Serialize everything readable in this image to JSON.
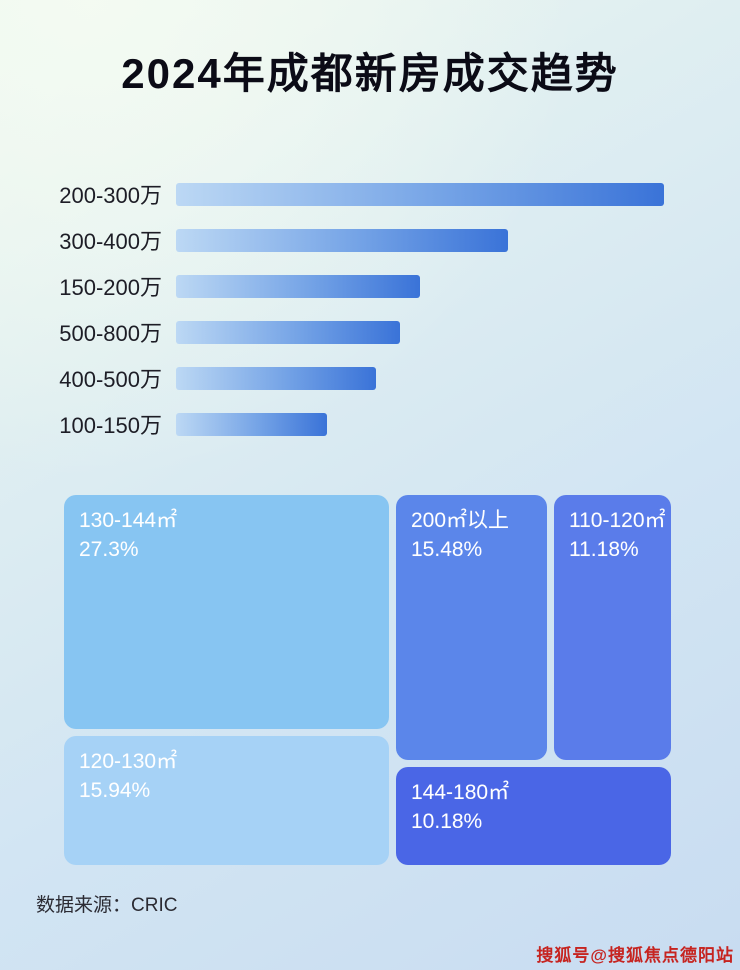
{
  "page": {
    "title": "2024年成都新房成交趋势",
    "source_label": "数据来源：CRIC",
    "watermark": "搜狐号@搜狐焦点德阳站"
  },
  "colors": {
    "bar_gradient_start": "#bcd8f4",
    "bar_gradient_end": "#3a73d8",
    "block_130_144": "#87c5f2",
    "block_200_plus": "#5b86ea",
    "block_110_120": "#5a7cea",
    "block_120_130": "#a6d2f6",
    "block_144_180": "#4a66e6",
    "watermark_red": "#c62420",
    "title_color": "#0b0b16"
  },
  "chart_data": [
    {
      "type": "bar",
      "title": "2024年成都新房成交趋势",
      "orientation": "horizontal",
      "categories": [
        "200-300万",
        "300-400万",
        "150-200万",
        "500-800万",
        "400-500万",
        "100-150万"
      ],
      "values": [
        100,
        68,
        50,
        46,
        41,
        31
      ],
      "xlim": [
        0,
        100
      ],
      "xlabel": "",
      "ylabel": "",
      "grid": false,
      "legend": "none"
    },
    {
      "type": "treemap",
      "items": [
        {
          "label": "130-144㎡",
          "value": 27.3,
          "display": "27.3%"
        },
        {
          "label": "200㎡以上",
          "value": 15.48,
          "display": "15.48%"
        },
        {
          "label": "110-120㎡",
          "value": 11.18,
          "display": "11.18%"
        },
        {
          "label": "120-130㎡",
          "value": 15.94,
          "display": "15.94%"
        },
        {
          "label": "144-180㎡",
          "value": 10.18,
          "display": "10.18%"
        }
      ]
    }
  ]
}
